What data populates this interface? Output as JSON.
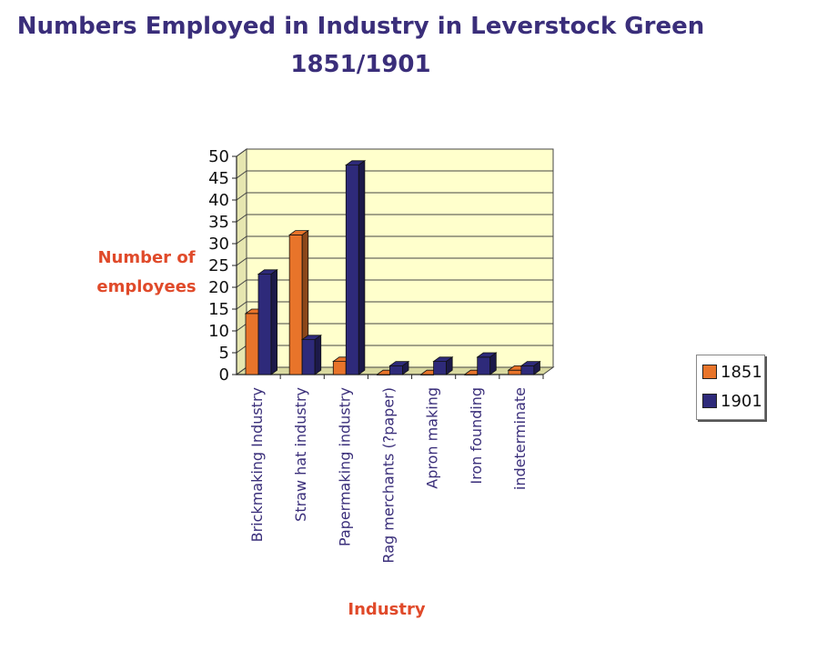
{
  "chart_data": {
    "type": "bar",
    "title": "Numbers Employed in Industry in Leverstock Green",
    "subtitle": "1851/1901",
    "ylabel_line1": "Number of",
    "ylabel_line2": "employees",
    "xlabel": "Industry",
    "ylim": [
      0,
      50
    ],
    "yticks": [
      "0",
      "5",
      "10",
      "15",
      "20",
      "25",
      "30",
      "35",
      "40",
      "45",
      "50"
    ],
    "categories": [
      "Brickmaking Industry",
      "Straw hat industry",
      "Papermaking industry",
      "Rag merchants (?paper)",
      "Apron making",
      "Iron founding",
      "indeterminate"
    ],
    "series": [
      {
        "name": "1851",
        "color": "#e8742a",
        "values": [
          14,
          32,
          3,
          0,
          0,
          0,
          1
        ]
      },
      {
        "name": "1901",
        "color": "#2e2a7a",
        "values": [
          23,
          8,
          48,
          2,
          3,
          4,
          2
        ]
      }
    ],
    "grid": true,
    "legend_position": "right",
    "plot_background": "#ffffcc"
  }
}
